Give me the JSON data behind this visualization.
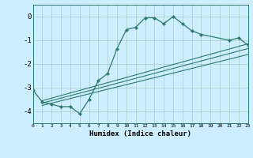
{
  "title": "",
  "xlabel": "Humidex (Indice chaleur)",
  "bg_color": "#cceeff",
  "line_color": "#2d7a6e",
  "grid_color": "#aacccc",
  "xlim": [
    0,
    23
  ],
  "ylim": [
    -4.5,
    0.5
  ],
  "xticks": [
    0,
    1,
    2,
    3,
    4,
    5,
    6,
    7,
    8,
    9,
    10,
    11,
    12,
    13,
    14,
    15,
    16,
    17,
    18,
    19,
    20,
    21,
    22,
    23
  ],
  "yticks": [
    0,
    -1,
    -2,
    -3,
    -4
  ],
  "main_x": [
    0,
    1,
    2,
    3,
    4,
    5,
    6,
    7,
    8,
    9,
    10,
    11,
    12,
    13,
    14,
    15,
    16,
    17,
    18,
    21,
    22,
    23
  ],
  "main_y": [
    -3.1,
    -3.6,
    -3.7,
    -3.8,
    -3.8,
    -4.1,
    -3.5,
    -2.7,
    -2.4,
    -1.35,
    -0.55,
    -0.45,
    -0.05,
    -0.05,
    -0.3,
    0.0,
    -0.3,
    -0.6,
    -0.75,
    -1.0,
    -0.9,
    -1.2
  ],
  "diag_lines": [
    {
      "x": [
        1,
        23
      ],
      "y": [
        -3.55,
        -1.15
      ]
    },
    {
      "x": [
        1,
        23
      ],
      "y": [
        -3.65,
        -1.35
      ]
    },
    {
      "x": [
        1,
        23
      ],
      "y": [
        -3.75,
        -1.6
      ]
    }
  ]
}
